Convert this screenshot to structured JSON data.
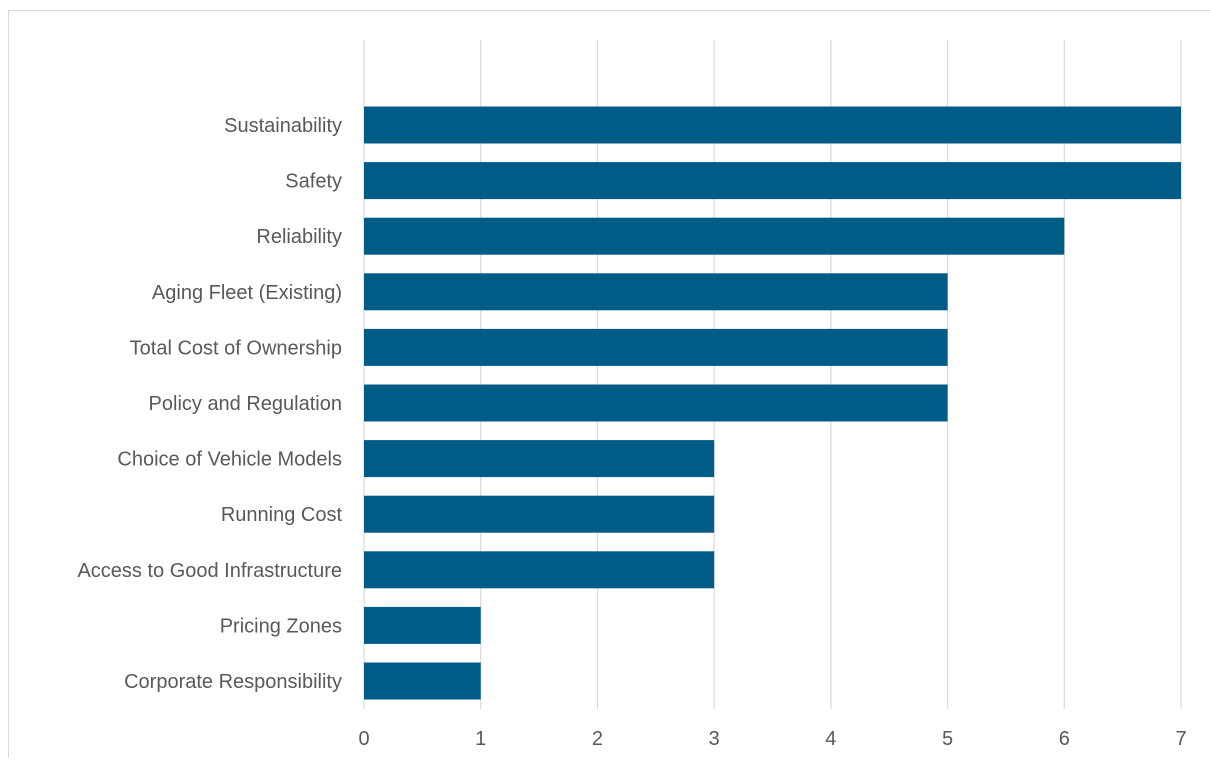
{
  "chart_data": {
    "type": "bar",
    "orientation": "horizontal",
    "title": "",
    "xlabel": "",
    "ylabel": "",
    "categories": [
      "Sustainability",
      "Safety",
      "Reliability",
      "Aging Fleet (Existing)",
      "Total Cost of Ownership",
      "Policy and Regulation",
      "Choice of Vehicle Models",
      "Running Cost",
      "Access to Good Infrastructure",
      "Pricing Zones",
      "Corporate Responsibility"
    ],
    "values": [
      7,
      7,
      6,
      5,
      5,
      5,
      3,
      3,
      3,
      1,
      1
    ],
    "xlim": [
      0,
      7
    ],
    "xticks": [
      "0",
      "1",
      "2",
      "3",
      "4",
      "5",
      "6",
      "7"
    ],
    "grid": "vertical",
    "legend": "none",
    "colors": {
      "bar": "#005b86",
      "grid": "#d9d9d9",
      "text": "#595959"
    }
  }
}
